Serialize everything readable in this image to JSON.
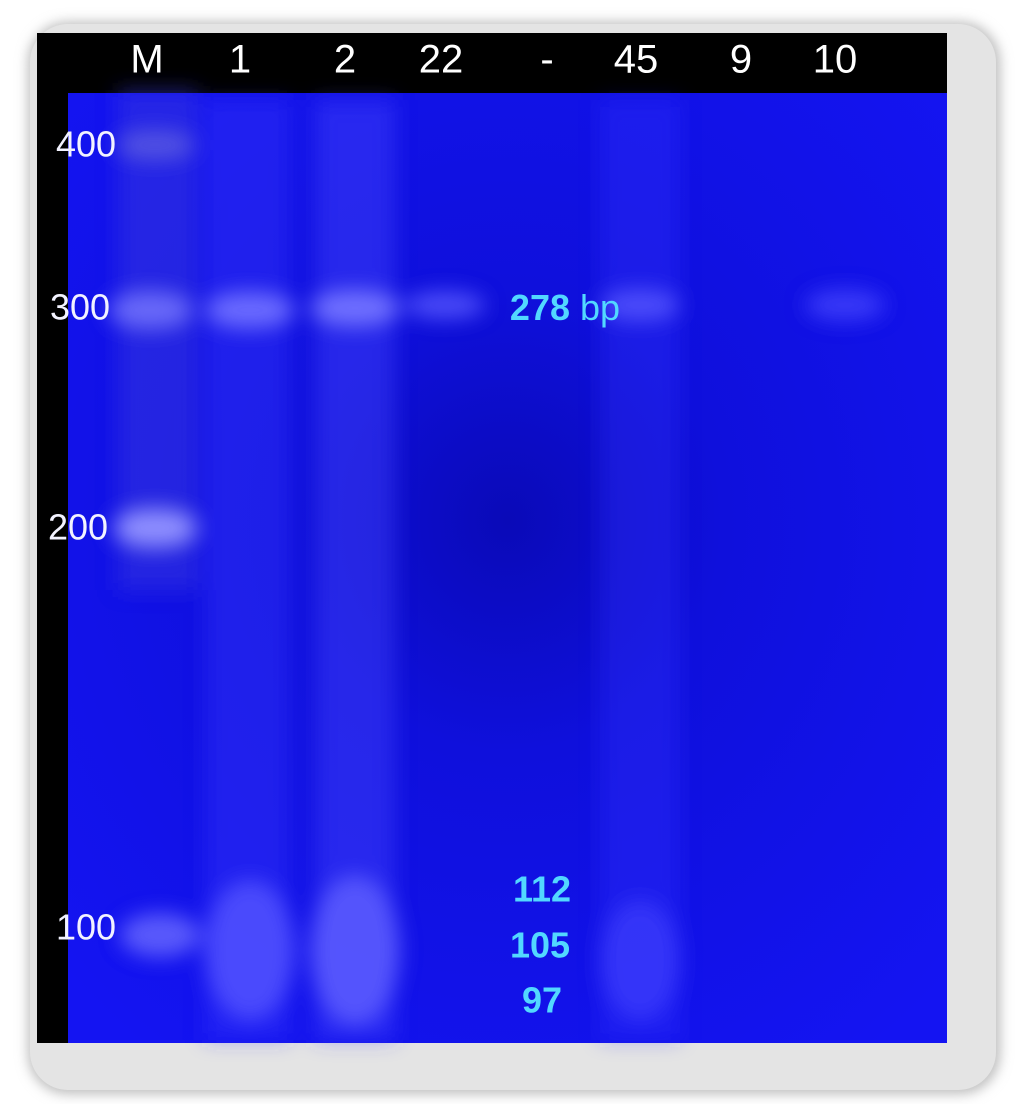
{
  "lanes": [
    "M",
    "1",
    "2",
    "22",
    "-",
    "45",
    "9",
    "10"
  ],
  "markers": [
    "400",
    "300",
    "200",
    "100"
  ],
  "annotations": [
    {
      "value": "278",
      "unit": "bp"
    },
    {
      "value": "112"
    },
    {
      "value": "105"
    },
    {
      "value": "97"
    }
  ]
}
